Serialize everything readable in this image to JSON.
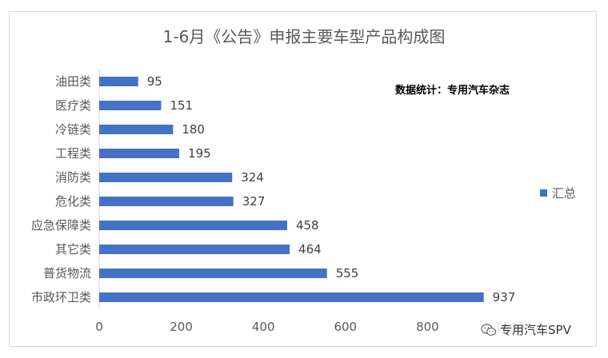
{
  "chart_data": {
    "type": "bar",
    "orientation": "horizontal",
    "title": "1-6月《公告》申报主要车型产品构成图",
    "categories": [
      "油田类",
      "医疗类",
      "冷链类",
      "工程类",
      "消防类",
      "危化类",
      "应急保障类",
      "其它类",
      "普货物流",
      "市政环卫类"
    ],
    "series": [
      {
        "name": "汇总",
        "values": [
          95,
          151,
          180,
          195,
          324,
          327,
          458,
          464,
          555,
          937
        ],
        "color": "#4472c4"
      }
    ],
    "xlim": [
      0,
      1000
    ],
    "xticks": [
      "0",
      "200",
      "400",
      "600",
      "800",
      "1000"
    ],
    "grid": false,
    "legend_position": "right"
  },
  "annotation": "数据统计：专用汽车杂志",
  "watermark": "专用汽车SPV"
}
